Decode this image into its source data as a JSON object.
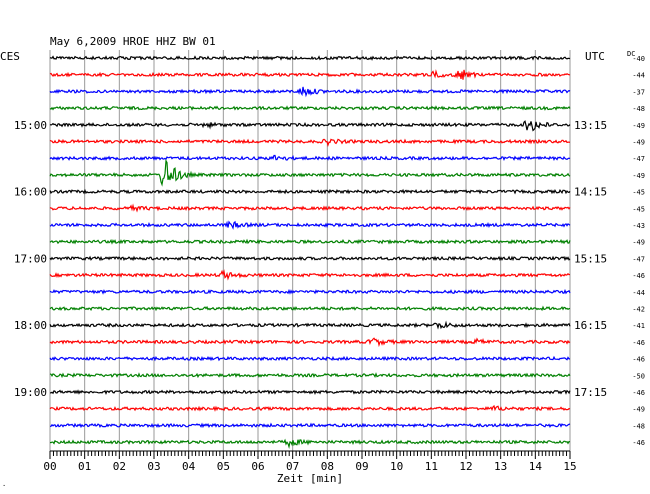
{
  "chart_data": {
    "type": "line",
    "title": "May 6,2009   HROE HHZ BW 01",
    "left_label": "CES",
    "right_label": "UTC",
    "dc_label": "DC",
    "xlabel": "Zeit [min]",
    "xlim": [
      0,
      15
    ],
    "x_ticks": [
      "00",
      "01",
      "02",
      "03",
      "04",
      "05",
      "06",
      "07",
      "08",
      "09",
      "10",
      "11",
      "12",
      "13",
      "14",
      "15"
    ],
    "grid": true,
    "colors": [
      "#000000",
      "#ff0000",
      "#0000ff",
      "#008000"
    ],
    "local_hour_labels": [
      {
        "row": 4,
        "text": "15:00"
      },
      {
        "row": 8,
        "text": "16:00"
      },
      {
        "row": 12,
        "text": "17:00"
      },
      {
        "row": 16,
        "text": "18:00"
      },
      {
        "row": 20,
        "text": "19:00"
      }
    ],
    "utc_hour_labels": [
      {
        "row": 4,
        "text": "13:15"
      },
      {
        "row": 8,
        "text": "14:15"
      },
      {
        "row": 12,
        "text": "15:15"
      },
      {
        "row": 16,
        "text": "16:15"
      },
      {
        "row": 20,
        "text": "17:15"
      }
    ],
    "dc_offsets": [
      -40,
      -44,
      -37,
      -48,
      -49,
      -49,
      -47,
      -49,
      -45,
      -45,
      -43,
      -49,
      -47,
      -46,
      -44,
      -42,
      -41,
      -46,
      -46,
      -50,
      -46,
      -49,
      -48,
      -46
    ],
    "events": [
      {
        "row": 1,
        "minute": 11.8,
        "amplitude": 1.0
      },
      {
        "row": 1,
        "minute": 11.1,
        "amplitude": 0.5
      },
      {
        "row": 2,
        "minute": 7.3,
        "amplitude": 0.8
      },
      {
        "row": 4,
        "minute": 13.8,
        "amplitude": 1.4
      },
      {
        "row": 4,
        "minute": 4.5,
        "amplitude": 0.3
      },
      {
        "row": 5,
        "minute": 8.0,
        "amplitude": 0.4
      },
      {
        "row": 6,
        "minute": 6.5,
        "amplitude": 0.4
      },
      {
        "row": 7,
        "minute": 3.3,
        "amplitude": 3.2
      },
      {
        "row": 9,
        "minute": 2.4,
        "amplitude": 0.3
      },
      {
        "row": 10,
        "minute": 5.2,
        "amplitude": 0.5
      },
      {
        "row": 13,
        "minute": 5.0,
        "amplitude": 0.6
      },
      {
        "row": 16,
        "minute": 11.2,
        "amplitude": 0.5
      },
      {
        "row": 17,
        "minute": 9.3,
        "amplitude": 0.6
      },
      {
        "row": 17,
        "minute": 12.3,
        "amplitude": 0.3
      },
      {
        "row": 21,
        "minute": 12.8,
        "amplitude": 0.3
      },
      {
        "row": 23,
        "minute": 6.9,
        "amplitude": 0.6
      }
    ]
  }
}
